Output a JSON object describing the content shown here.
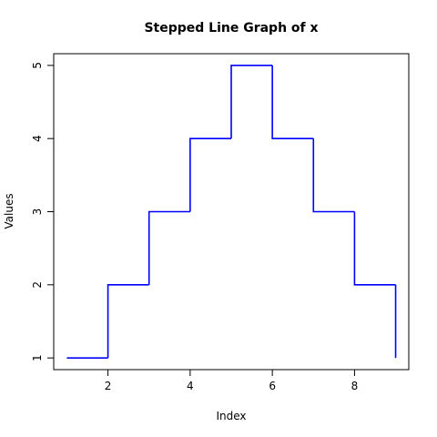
{
  "chart_data": {
    "type": "step",
    "title": "Stepped Line Graph of x",
    "x_label": "Index",
    "y_label": "Values",
    "x": [
      1,
      2,
      3,
      4,
      5,
      6,
      7,
      8,
      9
    ],
    "series": [
      {
        "name": "x",
        "color": "#0000ff",
        "values": [
          1,
          2,
          3,
          4,
          5,
          4,
          3,
          2,
          1
        ]
      }
    ],
    "xlim": [
      0.68,
      9.32
    ],
    "ylim": [
      0.84,
      5.16
    ],
    "xticks": [
      2,
      4,
      6,
      8
    ],
    "yticks": [
      1,
      2,
      3,
      4,
      5
    ]
  }
}
